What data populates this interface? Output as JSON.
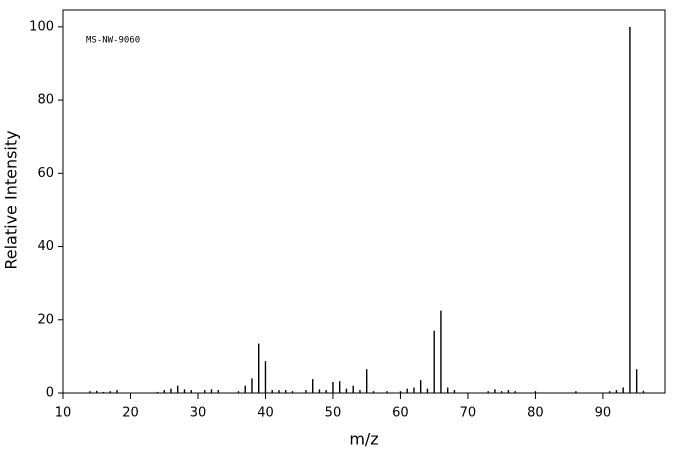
{
  "chart_data": {
    "type": "bar",
    "annotation": "MS-NW-9060",
    "xlabel": "m/z",
    "ylabel": "Relative Intensity",
    "x": [
      14,
      15,
      16,
      17,
      18,
      24,
      25,
      26,
      27,
      28,
      29,
      31,
      32,
      33,
      36,
      37,
      38,
      39,
      40,
      41,
      42,
      43,
      44,
      46,
      47,
      48,
      49,
      50,
      51,
      52,
      53,
      54,
      55,
      56,
      58,
      60,
      61,
      62,
      63,
      64,
      65,
      66,
      67,
      68,
      73,
      74,
      75,
      76,
      77,
      80,
      86,
      91,
      92,
      93,
      94,
      95,
      96
    ],
    "values": [
      0.5,
      0.6,
      0.3,
      0.5,
      0.8,
      0.3,
      0.8,
      1.2,
      2,
      1,
      0.8,
      0.8,
      1,
      0.8,
      0.5,
      2,
      4,
      13.5,
      8.7,
      0.8,
      0.8,
      0.8,
      0.5,
      0.8,
      3.8,
      1,
      0.8,
      3,
      3.2,
      1.2,
      2,
      0.8,
      6.5,
      0.5,
      0.5,
      0.5,
      1.2,
      1.5,
      3.5,
      1.2,
      17,
      22.5,
      1.5,
      0.8,
      0.5,
      1,
      0.5,
      0.8,
      0.5,
      0.5,
      0.5,
      0.5,
      0.8,
      1.5,
      100,
      6.5,
      0.6
    ],
    "color": "#000000",
    "xlim": [
      10,
      99.2
    ],
    "xticks": [
      10,
      20,
      30,
      40,
      50,
      60,
      70,
      80,
      90
    ],
    "ylim": [
      0,
      104.6
    ],
    "yticks": [
      0,
      20,
      40,
      60,
      80,
      100
    ]
  }
}
